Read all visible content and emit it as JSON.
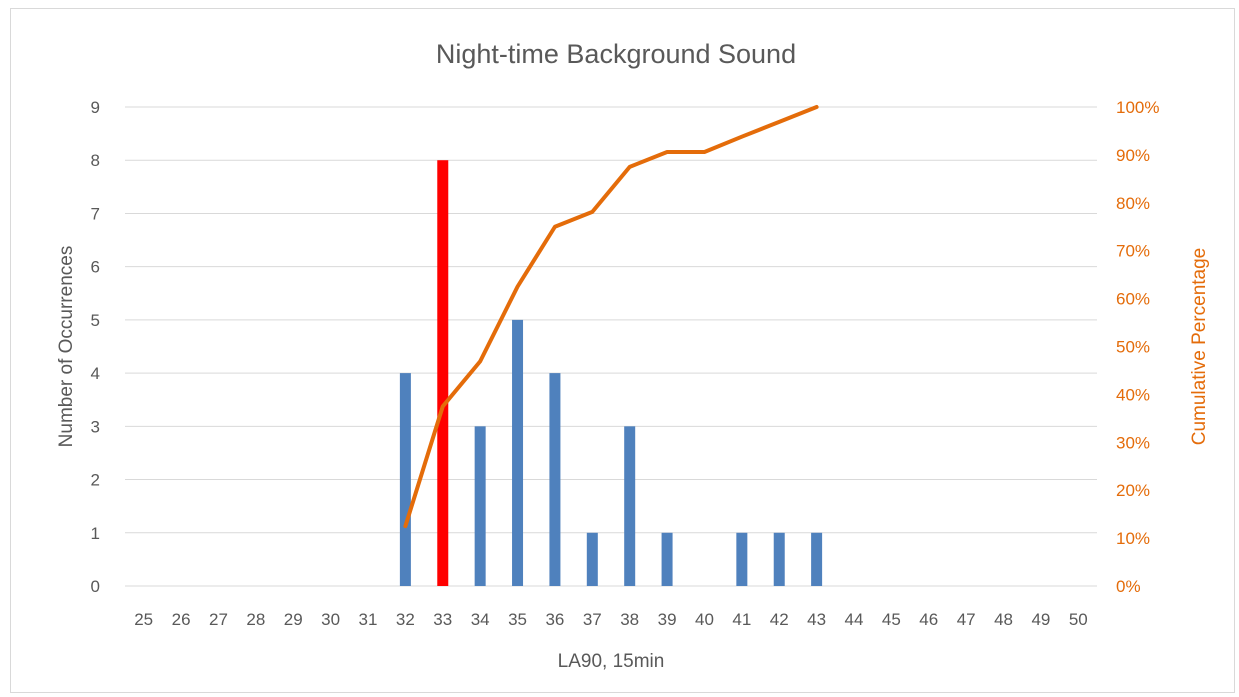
{
  "chart_data": {
    "type": "bar",
    "title": "Night-time Background Sound",
    "xlabel": "LA90, 15min",
    "ylabel": "Number of Occurrences",
    "y2label": "Cumulative Percentage",
    "categories": [
      "25",
      "26",
      "27",
      "28",
      "29",
      "30",
      "31",
      "32",
      "33",
      "34",
      "35",
      "36",
      "37",
      "38",
      "39",
      "40",
      "41",
      "42",
      "43",
      "44",
      "45",
      "46",
      "47",
      "48",
      "49",
      "50"
    ],
    "ylim": [
      0,
      9
    ],
    "yticks": [
      "0",
      "1",
      "2",
      "3",
      "4",
      "5",
      "6",
      "7",
      "8",
      "9"
    ],
    "y2lim": [
      0,
      100
    ],
    "y2ticks": [
      "0%",
      "10%",
      "20%",
      "30%",
      "40%",
      "50%",
      "60%",
      "70%",
      "80%",
      "90%",
      "100%"
    ],
    "grid": true,
    "legend": "none",
    "series": [
      {
        "type": "bar",
        "values": [
          0,
          0,
          0,
          0,
          0,
          0,
          0,
          4,
          8,
          3,
          5,
          4,
          1,
          3,
          1,
          0,
          1,
          1,
          1,
          0,
          0,
          0,
          0,
          0,
          0,
          0
        ],
        "color": "#4f81bd",
        "highlight": {
          "category": "33",
          "color": "#ff0000"
        }
      },
      {
        "type": "line",
        "axis": "right",
        "color": "#e46c0a",
        "x": [
          "32",
          "33",
          "34",
          "35",
          "36",
          "37",
          "38",
          "39",
          "40",
          "41",
          "42",
          "43"
        ],
        "values": [
          12.5,
          37.5,
          46.9,
          62.5,
          75.0,
          78.1,
          87.5,
          90.6,
          90.6,
          93.8,
          96.9,
          100.0
        ]
      }
    ]
  }
}
